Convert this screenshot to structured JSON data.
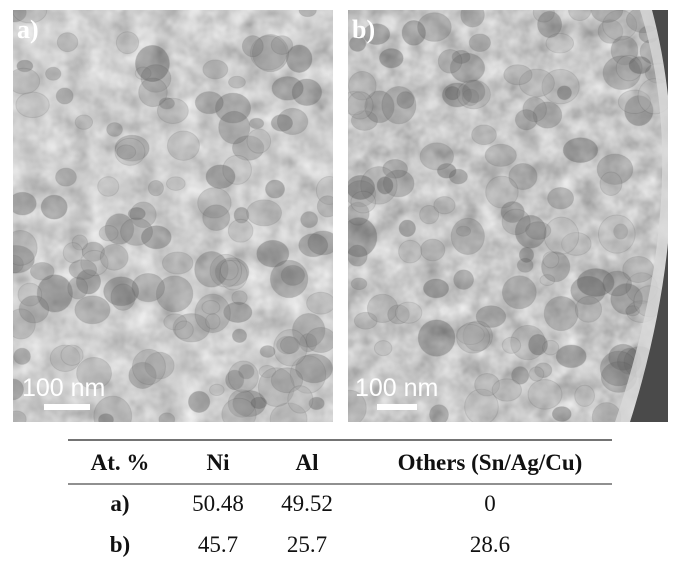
{
  "panels": [
    {
      "label": "a)",
      "scale_label": "100 nm"
    },
    {
      "label": "b)",
      "scale_label": "100 nm"
    }
  ],
  "table": {
    "header": [
      "At. %",
      "Ni",
      "Al",
      "Others (Sn/Ag/Cu)"
    ],
    "rows": [
      [
        "a)",
        "50.48",
        "49.52",
        "0"
      ],
      [
        "b)",
        "45.7",
        "25.7",
        "28.6"
      ]
    ]
  }
}
